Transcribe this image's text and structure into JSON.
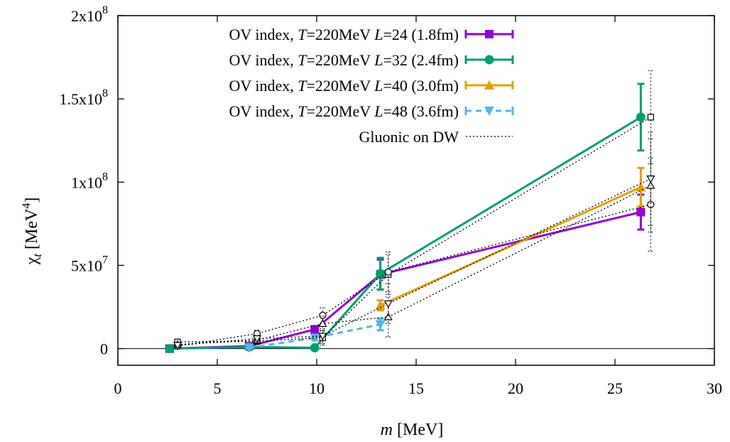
{
  "chart_data": {
    "type": "line",
    "title": "",
    "xlabel": {
      "var": "m",
      "unit": " [MeV]"
    },
    "ylabel": {
      "sym": "χ",
      "sub": "t",
      "unit_pre": " [MeV",
      "unit_sup": "4",
      "unit_post": "]"
    },
    "xlim": [
      0,
      30
    ],
    "ylim": [
      -10000000,
      200000000
    ],
    "x_ticks": [
      {
        "value": 0,
        "label": "0"
      },
      {
        "value": 5,
        "label": "5"
      },
      {
        "value": 10,
        "label": "10"
      },
      {
        "value": 15,
        "label": "15"
      },
      {
        "value": 20,
        "label": "20"
      },
      {
        "value": 25,
        "label": "25"
      },
      {
        "value": 30,
        "label": "30"
      }
    ],
    "y_ticks": [
      {
        "value": 0,
        "mant": "0",
        "exp": ""
      },
      {
        "value": 50000000,
        "mant": "5x10",
        "exp": "7"
      },
      {
        "value": 100000000,
        "mant": "1x10",
        "exp": "8"
      },
      {
        "value": 150000000,
        "mant": "1.5x10",
        "exp": "8"
      },
      {
        "value": 200000000,
        "mant": "2x10",
        "exp": "8"
      }
    ],
    "grid": false,
    "zero_line": true,
    "legend_position": "top-left",
    "series": [
      {
        "legend": {
          "pre": "OV index, ",
          "T": "T",
          "mid": "=220MeV ",
          "L": "L",
          "post": "=24 (1.8fm)"
        },
        "color": "#9400d3",
        "marker": "square",
        "dash": "solid",
        "x": [
          2.6,
          6.6,
          9.9,
          13.2,
          26.3
        ],
        "y": [
          0,
          1500000,
          11500000,
          44500000,
          82000000
        ],
        "yerr": [
          300000,
          700000,
          2000000,
          9000000,
          10500000
        ]
      },
      {
        "legend": {
          "pre": "OV index, ",
          "T": "T",
          "mid": "=220MeV ",
          "L": "L",
          "post": "=32 (2.4fm)"
        },
        "color": "#009e73",
        "marker": "circle",
        "dash": "solid",
        "x": [
          2.6,
          6.6,
          9.9,
          13.2,
          26.3
        ],
        "y": [
          0,
          1000000,
          500000,
          45000000,
          139000000
        ],
        "yerr": [
          300000,
          500000,
          600000,
          9500000,
          20000000
        ]
      },
      {
        "legend": {
          "pre": "OV index, ",
          "T": "T",
          "mid": "=220MeV ",
          "L": "L",
          "post": "=40 (3.0fm)"
        },
        "color": "#e69f00",
        "marker": "triangle",
        "dash": "solid",
        "x": [
          13.2,
          26.3
        ],
        "y": [
          26000000,
          97000000
        ],
        "yerr": [
          3000000,
          11500000
        ]
      },
      {
        "legend": {
          "pre": "OV index, ",
          "T": "T",
          "mid": "=220MeV ",
          "L": "L",
          "post": "=48 (3.6fm)"
        },
        "color": "#56b4e9",
        "marker": "triangle-down",
        "dash": "dashed",
        "x": [
          6.6,
          9.9,
          13.2
        ],
        "y": [
          500000,
          6500000,
          14500000
        ],
        "yerr": [
          400000,
          1500000,
          3500000
        ]
      },
      {
        "legend": {
          "pre": "Gluonic on DW",
          "T": "",
          "mid": "",
          "L": "",
          "post": ""
        },
        "color": "#000000",
        "marker": "open",
        "dash": "dotted",
        "lines": [
          {
            "x": [
              3.0,
              7.0,
              10.3,
              13.6,
              26.8
            ],
            "y": [
              4000000,
              4500000,
              6500000,
              44500000,
              139000000
            ]
          },
          {
            "x": [
              3.0,
              7.0,
              10.3,
              13.6,
              26.8
            ],
            "y": [
              1500000,
              9000000,
              20000000,
              46000000,
              86500000
            ]
          },
          {
            "x": [
              3.0,
              7.0,
              10.3,
              13.6,
              26.8
            ],
            "y": [
              2500000,
              5000000,
              15000000,
              19000000,
              98000000
            ]
          },
          {
            "x": [
              3.0,
              7.0,
              10.3,
              13.6,
              26.8
            ],
            "y": [
              2000000,
              6000000,
              7500000,
              27000000,
              102000000
            ]
          }
        ],
        "yerr": [
          1000000,
          2000000,
          4500000,
          12000000,
          28000000
        ]
      }
    ]
  }
}
